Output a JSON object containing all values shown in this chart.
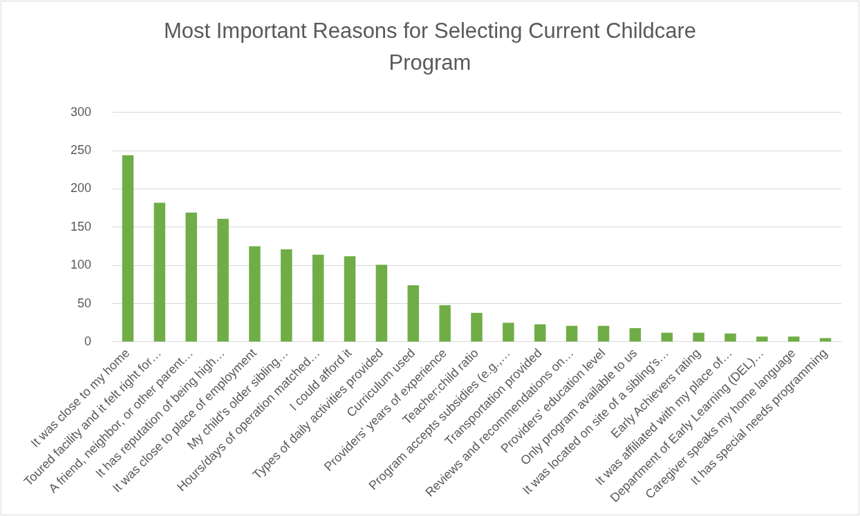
{
  "chart_data": {
    "type": "bar",
    "title": "Most Important Reasons for Selecting Current Childcare Program",
    "categories": [
      "It was close to my home",
      "Toured facility and it felt right for…",
      "A friend, neighbor, or other parent…",
      "It has reputation of being high…",
      "It was close to place of employment",
      "My child's older sibling…",
      "Hours/days of operation matched…",
      "I could afford it",
      "Types of daily activities provided",
      "Curriculum used",
      "Providers' years of experience",
      "Teacher:child ratio",
      "Program accepts subsidies (e.g.,…",
      "Transportation provided",
      "Reviews and recommendations on…",
      "Providers' education level",
      "Only program available to us",
      "It was located on site of a sibling's…",
      "Early Achievers rating",
      "It was affiliated with my place of…",
      "Department of Early Learning (DEL)…",
      "Caregiver speaks my home language",
      "It has special needs programming"
    ],
    "values": [
      244,
      182,
      169,
      161,
      125,
      121,
      114,
      112,
      101,
      74,
      48,
      38,
      25,
      23,
      21,
      21,
      18,
      12,
      12,
      11,
      7,
      7,
      5
    ],
    "color": "#70ad47",
    "ylim": [
      0,
      300
    ],
    "yticks": [
      0,
      50,
      100,
      150,
      200,
      250,
      300
    ],
    "grid": "y"
  }
}
